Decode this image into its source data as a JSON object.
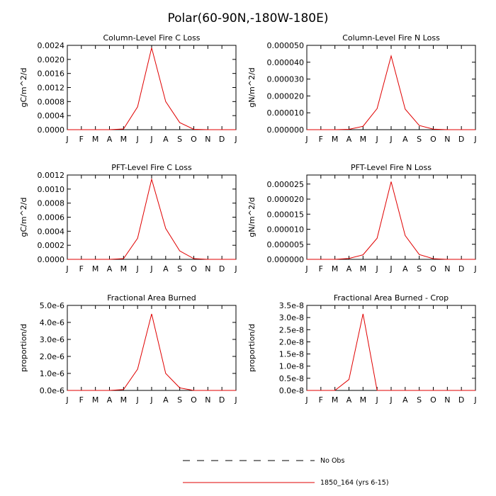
{
  "figure": {
    "title": "Polar(60-90N,-180W-180E)",
    "colors": {
      "model": "#e00000",
      "obs": "#000000",
      "axis": "#000000"
    }
  },
  "legend": {
    "placement": "bottom-center",
    "entries": [
      {
        "label": "No Obs",
        "style": "dashed",
        "color": "#000000"
      },
      {
        "label": "1850_164 (yrs 6-15)",
        "style": "solid",
        "color": "#e00000"
      }
    ]
  },
  "chart_data": [
    {
      "type": "line",
      "title": "Column-Level Fire C Loss",
      "ylabel": "gC/m^2/d",
      "categories": [
        "J",
        "F",
        "M",
        "A",
        "M",
        "J",
        "J",
        "A",
        "S",
        "O",
        "N",
        "D",
        "J"
      ],
      "yticks": [
        "0.0000",
        "0.0004",
        "0.0008",
        "0.0012",
        "0.0016",
        "0.0020",
        "0.0024"
      ],
      "ylim": [
        0,
        0.0024
      ],
      "series": [
        {
          "name": "1850_164 (yrs 6-15)",
          "values": [
            0,
            0,
            0,
            0,
            2e-05,
            0.00065,
            0.00233,
            0.0008,
            0.0002,
            1e-05,
            0,
            0,
            0
          ]
        }
      ]
    },
    {
      "type": "line",
      "title": "Column-Level Fire N Loss",
      "ylabel": "gN/m^2/d",
      "categories": [
        "J",
        "F",
        "M",
        "A",
        "M",
        "J",
        "J",
        "A",
        "S",
        "O",
        "N",
        "D",
        "J"
      ],
      "yticks": [
        "0.000000",
        "0.000010",
        "0.000020",
        "0.000030",
        "0.000040",
        "0.000050"
      ],
      "ylim": [
        0,
        5e-05
      ],
      "series": [
        {
          "name": "1850_164 (yrs 6-15)",
          "values": [
            0,
            0,
            0,
            2e-07,
            2e-06,
            1.25e-05,
            4.37e-05,
            1.22e-05,
            2.5e-06,
            3e-07,
            0,
            0,
            0
          ]
        }
      ]
    },
    {
      "type": "line",
      "title": "PFT-Level Fire C Loss",
      "ylabel": "gC/m^2/d",
      "categories": [
        "J",
        "F",
        "M",
        "A",
        "M",
        "J",
        "J",
        "A",
        "S",
        "O",
        "N",
        "D",
        "J"
      ],
      "yticks": [
        "0.0000",
        "0.0002",
        "0.0004",
        "0.0006",
        "0.0008",
        "0.0010",
        "0.0012"
      ],
      "ylim": [
        0,
        0.0012
      ],
      "series": [
        {
          "name": "1850_164 (yrs 6-15)",
          "values": [
            0,
            0,
            0,
            0,
            1e-05,
            0.0003,
            0.00114,
            0.00044,
            0.00012,
            1e-05,
            0,
            0,
            0
          ]
        }
      ]
    },
    {
      "type": "line",
      "title": "PFT-Level Fire N Loss",
      "ylabel": "gN/m^2/d",
      "categories": [
        "J",
        "F",
        "M",
        "A",
        "M",
        "J",
        "J",
        "A",
        "S",
        "O",
        "N",
        "D",
        "J"
      ],
      "yticks": [
        "0.000000",
        "0.000005",
        "0.000010",
        "0.000015",
        "0.000020",
        "0.000025"
      ],
      "ylim": [
        0,
        2.8e-05
      ],
      "series": [
        {
          "name": "1850_164 (yrs 6-15)",
          "values": [
            0,
            0,
            0,
            3e-07,
            1.5e-06,
            7e-06,
            2.58e-05,
            7.9e-06,
            1.6e-06,
            2e-07,
            0,
            0,
            0
          ]
        }
      ]
    },
    {
      "type": "line",
      "title": "Fractional Area Burned",
      "ylabel": "proportion/d",
      "categories": [
        "J",
        "F",
        "M",
        "A",
        "M",
        "J",
        "J",
        "A",
        "S",
        "O",
        "N",
        "D",
        "J"
      ],
      "yticks": [
        "0.0e-6",
        "1.0e-6",
        "2.0e-6",
        "3.0e-6",
        "4.0e-6",
        "5.0e-6"
      ],
      "ylim": [
        0,
        5e-06
      ],
      "series": [
        {
          "name": "1850_164 (yrs 6-15)",
          "values": [
            0,
            0,
            0,
            0,
            5e-08,
            1.25e-06,
            4.5e-06,
            1e-06,
            1.5e-07,
            0,
            0,
            0,
            0
          ]
        }
      ]
    },
    {
      "type": "line",
      "title": "Fractional Area Burned - Crop",
      "ylabel": "proportion/d",
      "categories": [
        "J",
        "F",
        "M",
        "A",
        "M",
        "J",
        "J",
        "A",
        "S",
        "O",
        "N",
        "D",
        "J"
      ],
      "yticks": [
        "0.0e-8",
        "0.5e-8",
        "1.0e-8",
        "1.5e-8",
        "2.0e-8",
        "2.5e-8",
        "3.0e-8",
        "3.5e-8"
      ],
      "ylim": [
        0,
        3.5e-08
      ],
      "series": [
        {
          "name": "1850_164 (yrs 6-15)",
          "values": [
            0,
            0,
            0,
            4.5e-09,
            3.15e-08,
            0,
            0,
            0,
            0,
            0,
            0,
            0,
            0
          ]
        }
      ]
    }
  ]
}
